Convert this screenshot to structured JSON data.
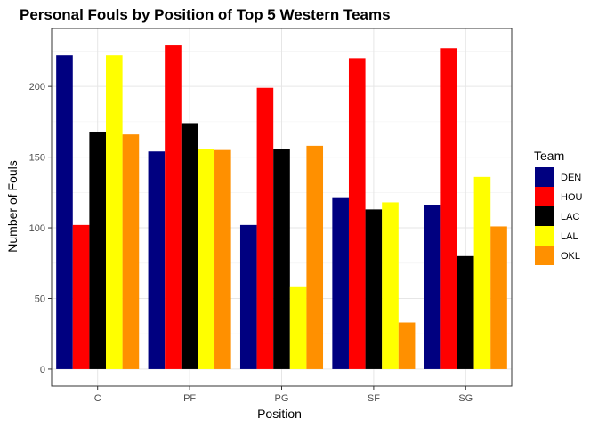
{
  "chart_data": {
    "type": "bar",
    "title": "Personal Fouls by Position of Top 5 Western Teams",
    "xlabel": "Position",
    "ylabel": "Number of Fouls",
    "categories": [
      "C",
      "PF",
      "PG",
      "SF",
      "SG"
    ],
    "ylim": [
      -12,
      241
    ],
    "yticks": [
      0,
      50,
      100,
      150,
      200
    ],
    "grid": true,
    "legend_title": "Team",
    "legend_position": "right",
    "series": [
      {
        "name": "DEN",
        "color": "#000080",
        "values": [
          222,
          154,
          102,
          121,
          116
        ]
      },
      {
        "name": "HOU",
        "color": "#ff0000",
        "values": [
          102,
          229,
          199,
          220,
          227
        ]
      },
      {
        "name": "LAC",
        "color": "#000000",
        "values": [
          168,
          174,
          156,
          113,
          80
        ]
      },
      {
        "name": "LAL",
        "color": "#ffff00",
        "values": [
          222,
          156,
          58,
          118,
          136
        ]
      },
      {
        "name": "OKL",
        "color": "#ff9000",
        "values": [
          166,
          155,
          158,
          33,
          101
        ]
      }
    ]
  }
}
